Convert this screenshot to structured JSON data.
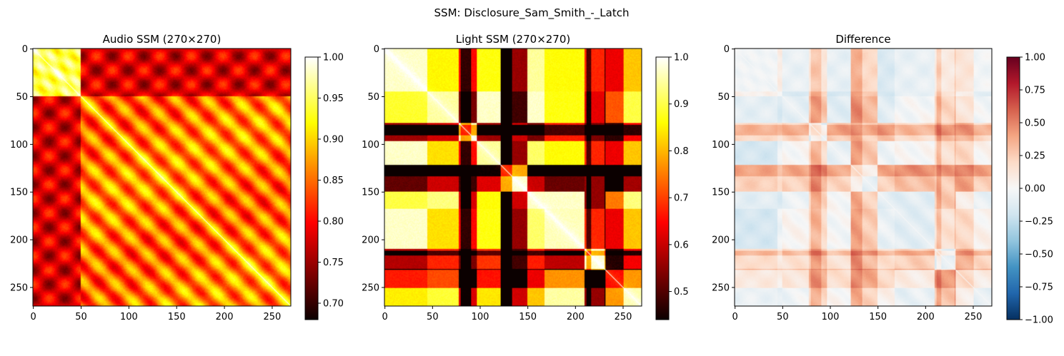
{
  "figure": {
    "suptitle": "SSM: Disclosure_Sam_Smith_-_Latch"
  },
  "chart_data": [
    {
      "type": "heatmap",
      "title": "Audio SSM (270×270)",
      "size": 270,
      "xticks": [
        0,
        50,
        100,
        150,
        200,
        250
      ],
      "yticks": [
        0,
        50,
        100,
        150,
        200,
        250
      ],
      "colormap": "hot",
      "vmin": 0.68,
      "vmax": 1.0,
      "colorbar_ticks": [
        "0.70",
        "0.75",
        "0.80",
        "0.85",
        "0.90",
        "0.95",
        "1.00"
      ],
      "colorbar_tick_values": [
        0.7,
        0.75,
        0.8,
        0.85,
        0.9,
        0.95,
        1.0
      ]
    },
    {
      "type": "heatmap",
      "title": "Light SSM (270×270)",
      "size": 270,
      "xticks": [
        0,
        50,
        100,
        150,
        200,
        250
      ],
      "yticks": [
        0,
        50,
        100,
        150,
        200,
        250
      ],
      "colormap": "hot",
      "vmin": 0.44,
      "vmax": 1.0,
      "colorbar_ticks": [
        "0.5",
        "0.6",
        "0.7",
        "0.8",
        "0.9",
        "1.0"
      ],
      "colorbar_tick_values": [
        0.5,
        0.6,
        0.7,
        0.8,
        0.9,
        1.0
      ]
    },
    {
      "type": "heatmap",
      "title": "Difference",
      "size": 270,
      "xticks": [
        0,
        50,
        100,
        150,
        200,
        250
      ],
      "yticks": [
        0,
        50,
        100,
        150,
        200,
        250
      ],
      "colormap": "RdBu_r",
      "vmin": -1.0,
      "vmax": 1.0,
      "colorbar_ticks": [
        "1.00",
        "0.75",
        "0.50",
        "0.25",
        "0.00",
        "−0.25",
        "−0.50",
        "−0.75",
        "−1.00"
      ],
      "colorbar_tick_values": [
        1.0,
        0.75,
        0.5,
        0.25,
        0.0,
        -0.25,
        -0.5,
        -0.75,
        -1.0
      ]
    }
  ]
}
